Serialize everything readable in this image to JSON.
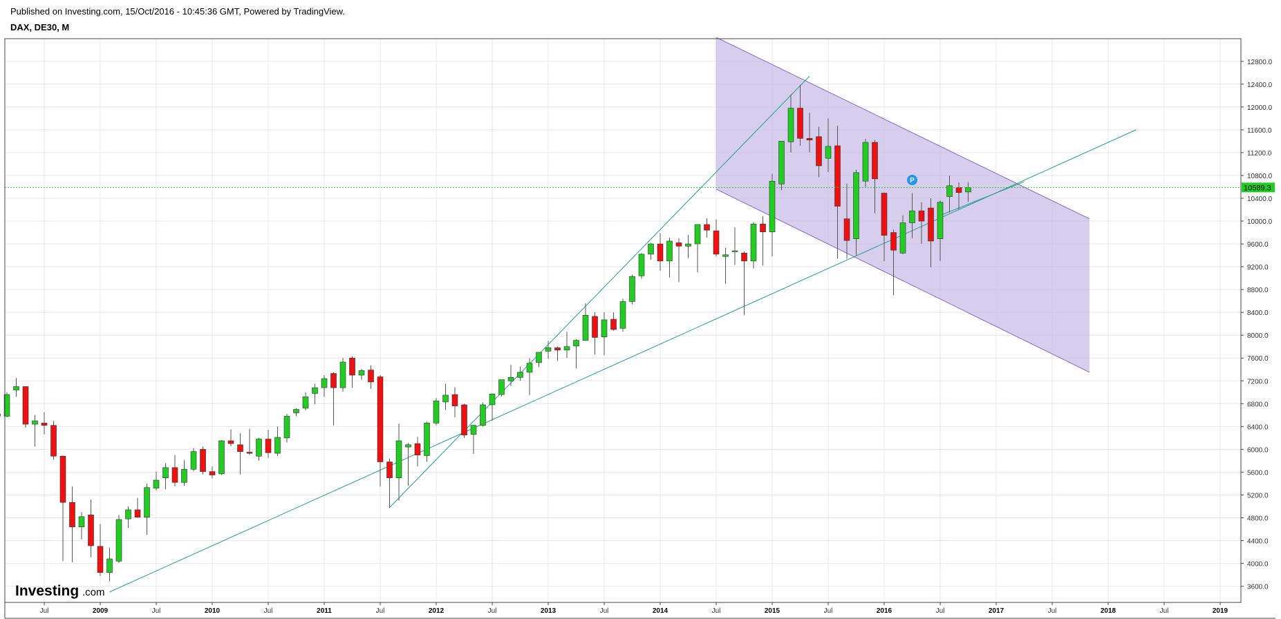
{
  "header": {
    "published": "Published on Investing.com, 15/Oct/2016 - 10:45:36 GMT, Powered by TradingView.",
    "symbol": "DAX, DE30, M"
  },
  "logo": {
    "brand": "Investing",
    "suffix": ".com"
  },
  "chart_data": {
    "type": "candlestick",
    "symbol": "DAX, DE30",
    "interval": "M",
    "ylim": [
      3400,
      13200
    ],
    "y_ticks": [
      3600,
      4000,
      4400,
      4800,
      5200,
      5600,
      6000,
      6400,
      6800,
      7200,
      7600,
      8000,
      8400,
      8800,
      9200,
      9600,
      10000,
      10400,
      10800,
      11200,
      11600,
      12000,
      12400,
      12800
    ],
    "y_tick_labels": [
      "3600.0",
      "4000.0",
      "4400.0",
      "4800.0",
      "5200.0",
      "5600.0",
      "6000.0",
      "6400.0",
      "6800.0",
      "7200.0",
      "7600.0",
      "8000.0",
      "8400.0",
      "8800.0",
      "9200.0",
      "9600.0",
      "10000.0",
      "10400.0",
      "10800.0",
      "11200.0",
      "11600.0",
      "12000.0",
      "12400.0",
      "12800.0"
    ],
    "x_ticks": [
      {
        "label": "Jul",
        "month": -6
      },
      {
        "label": "2009",
        "month": 0,
        "bold": true
      },
      {
        "label": "Jul",
        "month": 6
      },
      {
        "label": "2010",
        "month": 12,
        "bold": true
      },
      {
        "label": "Jul",
        "month": 18
      },
      {
        "label": "2011",
        "month": 24,
        "bold": true
      },
      {
        "label": "Jul",
        "month": 30
      },
      {
        "label": "2012",
        "month": 36,
        "bold": true
      },
      {
        "label": "Jul",
        "month": 42
      },
      {
        "label": "2013",
        "month": 48,
        "bold": true
      },
      {
        "label": "Jul",
        "month": 54
      },
      {
        "label": "2014",
        "month": 60,
        "bold": true
      },
      {
        "label": "Jul",
        "month": 66
      },
      {
        "label": "2015",
        "month": 72,
        "bold": true
      },
      {
        "label": "Jul",
        "month": 78
      },
      {
        "label": "2016",
        "month": 84,
        "bold": true
      },
      {
        "label": "Jul",
        "month": 90
      },
      {
        "label": "2017",
        "month": 96,
        "bold": true
      },
      {
        "label": "Jul",
        "month": 102
      },
      {
        "label": "2018",
        "month": 108,
        "bold": true
      },
      {
        "label": "Jul",
        "month": 114
      },
      {
        "label": "2019",
        "month": 120,
        "bold": true
      }
    ],
    "last_price": 10589.3,
    "last_price_label": "10589.3",
    "colors": {
      "up": "#22cc22",
      "down": "#ee1111",
      "last_price": "#22cc22",
      "channel_fill": "#c8bde6",
      "channel_line": "#8866cc",
      "trendline": "#20a090"
    },
    "candles": [
      {
        "month": -11,
        "open": 6620,
        "high": 6830,
        "low": 6180,
        "close": 6580
      },
      {
        "month": -10,
        "open": 6580,
        "high": 7000,
        "low": 6560,
        "close": 6960
      },
      {
        "month": -9,
        "open": 7040,
        "high": 7250,
        "low": 6920,
        "close": 7100
      },
      {
        "month": -8,
        "open": 7100,
        "high": 7100,
        "low": 6380,
        "close": 6440
      },
      {
        "month": -7,
        "open": 6440,
        "high": 6600,
        "low": 6050,
        "close": 6500
      },
      {
        "month": -6,
        "open": 6460,
        "high": 6650,
        "low": 6260,
        "close": 6420
      },
      {
        "month": -5,
        "open": 6420,
        "high": 6500,
        "low": 5820,
        "close": 5880
      },
      {
        "month": -4,
        "open": 5880,
        "high": 5890,
        "low": 4040,
        "close": 5070
      },
      {
        "month": -3,
        "open": 5070,
        "high": 5350,
        "low": 4020,
        "close": 4640
      },
      {
        "month": -2,
        "open": 4640,
        "high": 4900,
        "low": 4420,
        "close": 4820
      },
      {
        "month": -1,
        "open": 4850,
        "high": 5120,
        "low": 4110,
        "close": 4310
      },
      {
        "month": 0,
        "open": 4300,
        "high": 4690,
        "low": 3780,
        "close": 3840
      },
      {
        "month": 1,
        "open": 3840,
        "high": 4280,
        "low": 3690,
        "close": 4080
      },
      {
        "month": 2,
        "open": 4040,
        "high": 4850,
        "low": 4010,
        "close": 4770
      },
      {
        "month": 3,
        "open": 4780,
        "high": 5000,
        "low": 4620,
        "close": 4940
      },
      {
        "month": 4,
        "open": 4940,
        "high": 5150,
        "low": 4800,
        "close": 4810
      },
      {
        "month": 5,
        "open": 4810,
        "high": 5400,
        "low": 4500,
        "close": 5330
      },
      {
        "month": 6,
        "open": 5320,
        "high": 5610,
        "low": 5280,
        "close": 5460
      },
      {
        "month": 7,
        "open": 5500,
        "high": 5760,
        "low": 5300,
        "close": 5680
      },
      {
        "month": 8,
        "open": 5680,
        "high": 5900,
        "low": 5350,
        "close": 5420
      },
      {
        "month": 9,
        "open": 5420,
        "high": 5810,
        "low": 5360,
        "close": 5650
      },
      {
        "month": 10,
        "open": 5650,
        "high": 6020,
        "low": 5620,
        "close": 5960
      },
      {
        "month": 11,
        "open": 6000,
        "high": 6050,
        "low": 5560,
        "close": 5610
      },
      {
        "month": 12,
        "open": 5610,
        "high": 5700,
        "low": 5490,
        "close": 5550
      },
      {
        "month": 13,
        "open": 5570,
        "high": 6160,
        "low": 5550,
        "close": 6150
      },
      {
        "month": 14,
        "open": 6150,
        "high": 6350,
        "low": 6050,
        "close": 6100
      },
      {
        "month": 15,
        "open": 6080,
        "high": 6280,
        "low": 5560,
        "close": 5960
      },
      {
        "month": 16,
        "open": 5950,
        "high": 6360,
        "low": 5900,
        "close": 5930
      },
      {
        "month": 17,
        "open": 5880,
        "high": 6200,
        "low": 5800,
        "close": 6180
      },
      {
        "month": 18,
        "open": 6180,
        "high": 6340,
        "low": 5850,
        "close": 5940
      },
      {
        "month": 19,
        "open": 5930,
        "high": 6400,
        "low": 5880,
        "close": 6210
      },
      {
        "month": 20,
        "open": 6200,
        "high": 6620,
        "low": 6120,
        "close": 6580
      },
      {
        "month": 21,
        "open": 6640,
        "high": 6720,
        "low": 6580,
        "close": 6700
      },
      {
        "month": 22,
        "open": 6720,
        "high": 7000,
        "low": 6680,
        "close": 6920
      },
      {
        "month": 23,
        "open": 6980,
        "high": 7150,
        "low": 6790,
        "close": 7080
      },
      {
        "month": 24,
        "open": 7080,
        "high": 7300,
        "low": 6920,
        "close": 7240
      },
      {
        "month": 25,
        "open": 7330,
        "high": 7350,
        "low": 6420,
        "close": 7080
      },
      {
        "month": 26,
        "open": 7080,
        "high": 7600,
        "low": 7010,
        "close": 7530
      },
      {
        "month": 27,
        "open": 7600,
        "high": 7630,
        "low": 7080,
        "close": 7300
      },
      {
        "month": 28,
        "open": 7300,
        "high": 7410,
        "low": 7220,
        "close": 7380
      },
      {
        "month": 29,
        "open": 7390,
        "high": 7470,
        "low": 7060,
        "close": 7180
      },
      {
        "month": 30,
        "open": 7270,
        "high": 7300,
        "low": 5350,
        "close": 5780
      },
      {
        "month": 31,
        "open": 5780,
        "high": 5840,
        "low": 4970,
        "close": 5500
      },
      {
        "month": 32,
        "open": 5500,
        "high": 6450,
        "low": 5100,
        "close": 6150
      },
      {
        "month": 33,
        "open": 6040,
        "high": 6110,
        "low": 5360,
        "close": 6080
      },
      {
        "month": 34,
        "open": 6100,
        "high": 6220,
        "low": 5700,
        "close": 5900
      },
      {
        "month": 35,
        "open": 5890,
        "high": 6480,
        "low": 5780,
        "close": 6460
      },
      {
        "month": 36,
        "open": 6460,
        "high": 6900,
        "low": 6420,
        "close": 6850
      },
      {
        "month": 37,
        "open": 6830,
        "high": 7150,
        "low": 6690,
        "close": 6950
      },
      {
        "month": 38,
        "open": 6960,
        "high": 7090,
        "low": 6560,
        "close": 6760
      },
      {
        "month": 39,
        "open": 6780,
        "high": 6800,
        "low": 6200,
        "close": 6250
      },
      {
        "month": 40,
        "open": 6260,
        "high": 6430,
        "low": 5920,
        "close": 6420
      },
      {
        "month": 41,
        "open": 6420,
        "high": 6820,
        "low": 6400,
        "close": 6780
      },
      {
        "month": 42,
        "open": 6780,
        "high": 6980,
        "low": 6500,
        "close": 6970
      },
      {
        "month": 43,
        "open": 6960,
        "high": 7200,
        "low": 6930,
        "close": 7220
      },
      {
        "month": 44,
        "open": 7200,
        "high": 7480,
        "low": 7110,
        "close": 7260
      },
      {
        "month": 45,
        "open": 7260,
        "high": 7450,
        "low": 7200,
        "close": 7350
      },
      {
        "month": 46,
        "open": 7350,
        "high": 7600,
        "low": 6950,
        "close": 7510
      },
      {
        "month": 47,
        "open": 7520,
        "high": 7700,
        "low": 7440,
        "close": 7700
      },
      {
        "month": 48,
        "open": 7720,
        "high": 7900,
        "low": 7590,
        "close": 7780
      },
      {
        "month": 49,
        "open": 7780,
        "high": 7800,
        "low": 7550,
        "close": 7740
      },
      {
        "month": 50,
        "open": 7740,
        "high": 8060,
        "low": 7600,
        "close": 7800
      },
      {
        "month": 51,
        "open": 7810,
        "high": 7930,
        "low": 7420,
        "close": 7910
      },
      {
        "month": 52,
        "open": 7910,
        "high": 8560,
        "low": 7900,
        "close": 8350
      },
      {
        "month": 53,
        "open": 8330,
        "high": 8400,
        "low": 7660,
        "close": 7960
      },
      {
        "month": 54,
        "open": 7970,
        "high": 8400,
        "low": 7650,
        "close": 8270
      },
      {
        "month": 55,
        "open": 8280,
        "high": 8400,
        "low": 8080,
        "close": 8100
      },
      {
        "month": 56,
        "open": 8120,
        "high": 8640,
        "low": 8060,
        "close": 8590
      },
      {
        "month": 57,
        "open": 8590,
        "high": 9060,
        "low": 8540,
        "close": 9030
      },
      {
        "month": 58,
        "open": 9040,
        "high": 9440,
        "low": 8990,
        "close": 9420
      },
      {
        "month": 59,
        "open": 9420,
        "high": 9620,
        "low": 9320,
        "close": 9600
      },
      {
        "month": 60,
        "open": 9600,
        "high": 9790,
        "low": 9130,
        "close": 9300
      },
      {
        "month": 61,
        "open": 9300,
        "high": 9710,
        "low": 9010,
        "close": 9650
      },
      {
        "month": 62,
        "open": 9620,
        "high": 9700,
        "low": 8930,
        "close": 9560
      },
      {
        "month": 63,
        "open": 9560,
        "high": 9760,
        "low": 9350,
        "close": 9600
      },
      {
        "month": 64,
        "open": 9600,
        "high": 9930,
        "low": 9100,
        "close": 9940
      },
      {
        "month": 65,
        "open": 9940,
        "high": 10050,
        "low": 9710,
        "close": 9840
      },
      {
        "month": 66,
        "open": 9830,
        "high": 10030,
        "low": 9380,
        "close": 9420
      },
      {
        "month": 67,
        "open": 9380,
        "high": 9530,
        "low": 8900,
        "close": 9410
      },
      {
        "month": 68,
        "open": 9480,
        "high": 9890,
        "low": 9230,
        "close": 9480
      },
      {
        "month": 69,
        "open": 9440,
        "high": 9470,
        "low": 8350,
        "close": 9300
      },
      {
        "month": 70,
        "open": 9300,
        "high": 9980,
        "low": 9170,
        "close": 9950
      },
      {
        "month": 71,
        "open": 9950,
        "high": 10090,
        "low": 9220,
        "close": 9810
      },
      {
        "month": 72,
        "open": 9810,
        "high": 10830,
        "low": 9380,
        "close": 10700
      },
      {
        "month": 73,
        "open": 10650,
        "high": 11400,
        "low": 10540,
        "close": 11400
      },
      {
        "month": 74,
        "open": 11390,
        "high": 12220,
        "low": 11200,
        "close": 11980
      },
      {
        "month": 75,
        "open": 11980,
        "high": 12390,
        "low": 11320,
        "close": 11450
      },
      {
        "month": 76,
        "open": 11450,
        "high": 11900,
        "low": 11200,
        "close": 11420
      },
      {
        "month": 77,
        "open": 11480,
        "high": 11650,
        "low": 10770,
        "close": 10970
      },
      {
        "month": 78,
        "open": 11100,
        "high": 11800,
        "low": 10860,
        "close": 11310
      },
      {
        "month": 79,
        "open": 11320,
        "high": 11670,
        "low": 9340,
        "close": 10260
      },
      {
        "month": 80,
        "open": 10040,
        "high": 10660,
        "low": 9340,
        "close": 9660
      },
      {
        "month": 81,
        "open": 9690,
        "high": 10900,
        "low": 9400,
        "close": 10850
      },
      {
        "month": 82,
        "open": 10700,
        "high": 11440,
        "low": 10600,
        "close": 11380
      },
      {
        "month": 83,
        "open": 11380,
        "high": 11420,
        "low": 10140,
        "close": 10740
      },
      {
        "month": 84,
        "open": 10490,
        "high": 10500,
        "low": 9300,
        "close": 9750
      },
      {
        "month": 85,
        "open": 9800,
        "high": 9850,
        "low": 8700,
        "close": 9490
      },
      {
        "month": 86,
        "open": 9440,
        "high": 10100,
        "low": 9420,
        "close": 9970
      },
      {
        "month": 87,
        "open": 9970,
        "high": 10490,
        "low": 9700,
        "close": 10180
      },
      {
        "month": 88,
        "open": 10180,
        "high": 10330,
        "low": 9600,
        "close": 10000
      },
      {
        "month": 89,
        "open": 10230,
        "high": 10400,
        "low": 9190,
        "close": 9650
      },
      {
        "month": 90,
        "open": 9690,
        "high": 10360,
        "low": 9300,
        "close": 10330
      },
      {
        "month": 91,
        "open": 10430,
        "high": 10800,
        "low": 10150,
        "close": 10620
      },
      {
        "month": 92,
        "open": 10590,
        "high": 10680,
        "low": 10200,
        "close": 10500
      },
      {
        "month": 93,
        "open": 10510,
        "high": 10680,
        "low": 10340,
        "close": 10589.3
      }
    ],
    "drawings": {
      "channel": {
        "upper": [
          {
            "month": 66,
            "value": 13220
          },
          {
            "month": 106,
            "value": 10040
          }
        ],
        "lower": [
          {
            "month": 66,
            "value": 10560
          },
          {
            "month": 106,
            "value": 7350
          }
        ]
      },
      "trendlines": [
        {
          "from": {
            "month": 1,
            "value": 3500
          },
          "to": {
            "month": 111,
            "value": 11600
          }
        },
        {
          "from": {
            "month": 31,
            "value": 4980
          },
          "to": {
            "month": 76,
            "value": 12540
          }
        },
        {
          "from": {
            "month": 90,
            "value": 10100
          },
          "to": {
            "month": 99,
            "value": 10690
          }
        }
      ],
      "marker": {
        "label": "P",
        "month": 87,
        "value": 10720,
        "color": "#2196f3"
      }
    }
  }
}
